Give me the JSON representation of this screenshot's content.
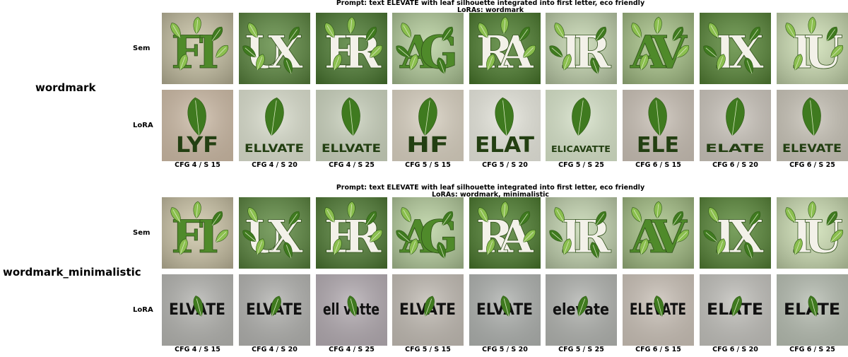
{
  "colors": {
    "sem_bg_light": "#a8c58a",
    "sem_bg_dark": "#4e7a32",
    "leaf_green": "#3f7a1f",
    "leaf_light": "#8bbf4f",
    "letter_white": "#f3f1e9",
    "gray_bg": "#b4b4b1",
    "dark_text": "#111111"
  },
  "sections": [
    {
      "name": "wordmark",
      "prompt_line1": "Prompt: text ELEVATE with leaf silhouette integrated into first letter, eco friendly",
      "prompt_line2": "LoRAs: wordmark",
      "rows": [
        {
          "label": "Sem",
          "images": [
            {
              "icon": "leafy-letter-icon",
              "letters": "FI",
              "bg": "#c9c3a5"
            },
            {
              "icon": "leafy-letter-icon",
              "letters": "UX",
              "bg": "#5f8b42"
            },
            {
              "icon": "leafy-letter-icon",
              "letters": "ER",
              "bg": "#4f7e34"
            },
            {
              "icon": "leafy-letter-icon",
              "letters": "AG",
              "bg": "#b6cf9d"
            },
            {
              "icon": "leafy-letter-icon",
              "letters": "RA",
              "bg": "#4f8030"
            },
            {
              "icon": "leafy-letter-icon",
              "letters": "IR",
              "bg": "#c5d6b0"
            },
            {
              "icon": "leafy-letter-icon",
              "letters": "AV",
              "bg": "#a9c489"
            },
            {
              "icon": "leafy-letter-icon",
              "letters": "IX",
              "bg": "#5b8a3a"
            },
            {
              "icon": "leafy-letter-icon",
              "letters": "IU",
              "bg": "#cfe0b5"
            }
          ]
        },
        {
          "label": "LoRA",
          "images": [
            {
              "icon": "leaf-wordmark-icon",
              "text": "LYF",
              "bg": "#cbb9a4"
            },
            {
              "icon": "leaf-wordmark-icon",
              "text": "ELLVATE",
              "bg": "#d9ddcc"
            },
            {
              "icon": "leaf-wordmark-icon",
              "text": "ELLVATE",
              "bg": "#c9d1bc"
            },
            {
              "icon": "leaf-wordmark-icon",
              "text": "HF",
              "bg": "#d8d0c0"
            },
            {
              "icon": "leaf-wordmark-icon",
              "text": "ELAT",
              "bg": "#e6e6dc"
            },
            {
              "icon": "leaf-wordmark-icon",
              "text": "ELICAVATTE",
              "bg": "#d6e2c8"
            },
            {
              "icon": "leaf-wordmark-icon",
              "text": "ELE",
              "bg": "#c8bfb4"
            },
            {
              "icon": "leaf-wordmark-icon",
              "text": "ELATE",
              "bg": "#c9c3ba"
            },
            {
              "icon": "leaf-wordmark-icon",
              "text": "ELEVATE",
              "bg": "#c7c2b6"
            }
          ]
        }
      ],
      "cfg_labels": [
        "CFG 4 / S 15",
        "CFG 4 / S 20",
        "CFG 4 / S 25",
        "CFG 5 / S 15",
        "CFG 5 / S 20",
        "CFG 5 / S 25",
        "CFG 6 / S 15",
        "CFG 6 / S 20",
        "CFG 6 / S 25"
      ]
    },
    {
      "name": "wordmark_minimalistic",
      "prompt_line1": "Prompt: text ELEVATE with leaf silhouette integrated into first letter, eco friendly",
      "prompt_line2": "LoRAs: wordmark, minimalistic",
      "rows": [
        {
          "label": "Sem",
          "images": [
            {
              "icon": "leafy-letter-icon",
              "letters": "FI",
              "bg": "#cfc7a9"
            },
            {
              "icon": "leafy-letter-icon",
              "letters": "UX",
              "bg": "#5f8b42"
            },
            {
              "icon": "leafy-letter-icon",
              "letters": "ER",
              "bg": "#527f36"
            },
            {
              "icon": "leafy-letter-icon",
              "letters": "AG",
              "bg": "#b9d1a0"
            },
            {
              "icon": "leafy-letter-icon",
              "letters": "RA",
              "bg": "#4f8030"
            },
            {
              "icon": "leafy-letter-icon",
              "letters": "IR",
              "bg": "#c6d7b2"
            },
            {
              "icon": "leafy-letter-icon",
              "letters": "AV",
              "bg": "#a7c287"
            },
            {
              "icon": "leafy-letter-icon",
              "letters": "IX",
              "bg": "#5b8a3a"
            },
            {
              "icon": "leafy-letter-icon",
              "letters": "IU",
              "bg": "#cfe0b5"
            }
          ]
        },
        {
          "label": "LoRA",
          "images": [
            {
              "icon": "leaf-wordmark-icon",
              "text": "ELVATE",
              "bg": "#b2b2ae"
            },
            {
              "icon": "leaf-wordmark-icon",
              "text": "ELVATE",
              "bg": "#b0b0ad"
            },
            {
              "icon": "leaf-wordmark-icon",
              "text": "ell vatte",
              "bg": "#b2aab0"
            },
            {
              "icon": "leaf-wordmark-icon",
              "text": "ELVATE",
              "bg": "#c0bab2"
            },
            {
              "icon": "leaf-wordmark-icon",
              "text": "ELVATE",
              "bg": "#adb0ad"
            },
            {
              "icon": "leaf-wordmark-icon",
              "text": "elevate",
              "bg": "#b0b2ae"
            },
            {
              "icon": "leaf-wordmark-icon",
              "text": "ELEVATE",
              "bg": "#c9c0b6"
            },
            {
              "icon": "leaf-wordmark-icon",
              "text": "ELATE",
              "bg": "#c0bfba"
            },
            {
              "icon": "leaf-wordmark-icon",
              "text": "ELATE",
              "bg": "#b5bcb0"
            }
          ]
        }
      ],
      "cfg_labels": [
        "CFG 4 / S 15",
        "CFG 4 / S 20",
        "CFG 4 / S 25",
        "CFG 5 / S 15",
        "CFG 5 / S 20",
        "CFG 5 / S 25",
        "CFG 6 / S 15",
        "CFG 6 / S 20",
        "CFG 6 / S 25"
      ]
    }
  ]
}
